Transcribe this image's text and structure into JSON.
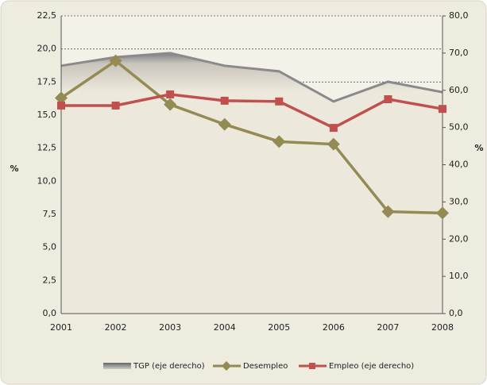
{
  "chart_data": {
    "type": "line",
    "categories": [
      "2001",
      "2002",
      "2003",
      "2004",
      "2005",
      "2006",
      "2007",
      "2008"
    ],
    "y_label": "%",
    "y2_label": "%",
    "ylim": [
      0,
      22.5
    ],
    "yticks": [
      {
        "value": 0,
        "label": "0,0"
      },
      {
        "value": 2.5,
        "label": "2,5"
      },
      {
        "value": 5,
        "label": "5,0"
      },
      {
        "value": 7.5,
        "label": "7,5"
      },
      {
        "value": 10,
        "label": "10,0"
      },
      {
        "value": 12.5,
        "label": "12,5"
      },
      {
        "value": 15,
        "label": "15,0"
      },
      {
        "value": 17.5,
        "label": "17,5"
      },
      {
        "value": 20,
        "label": "20,0"
      },
      {
        "value": 22.5,
        "label": "22,5"
      }
    ],
    "y2lim": [
      0,
      80
    ],
    "y2ticks": [
      {
        "value": 0,
        "label": "0,0"
      },
      {
        "value": 10,
        "label": "10,0"
      },
      {
        "value": 20,
        "label": "20,0"
      },
      {
        "value": 30,
        "label": "30,0"
      },
      {
        "value": 40,
        "label": "40,0"
      },
      {
        "value": 50,
        "label": "50,0"
      },
      {
        "value": 60,
        "label": "60,0"
      },
      {
        "value": 70,
        "label": "70,0"
      },
      {
        "value": 80,
        "label": "80,0"
      }
    ],
    "grid": true,
    "series": [
      {
        "name": "TGP (eje derecho)",
        "kind": "area",
        "axis": "y2",
        "color": "#8a8a8a",
        "values": [
          66.6,
          68.9,
          70.0,
          66.6,
          65.1,
          57.0,
          62.3,
          59.5
        ]
      },
      {
        "name": "Desempleo",
        "kind": "line",
        "marker": "diamond",
        "color": "#948a54",
        "values": [
          16.3,
          19.1,
          15.8,
          14.3,
          13.0,
          12.8,
          7.7,
          7.6
        ]
      },
      {
        "name": "Empleo (eje derecho)",
        "kind": "line",
        "marker": "square",
        "axis": "y2",
        "color": "#c0504d",
        "values": [
          55.9,
          55.9,
          58.9,
          57.2,
          57.0,
          49.9,
          57.6,
          55.0
        ]
      }
    ]
  }
}
